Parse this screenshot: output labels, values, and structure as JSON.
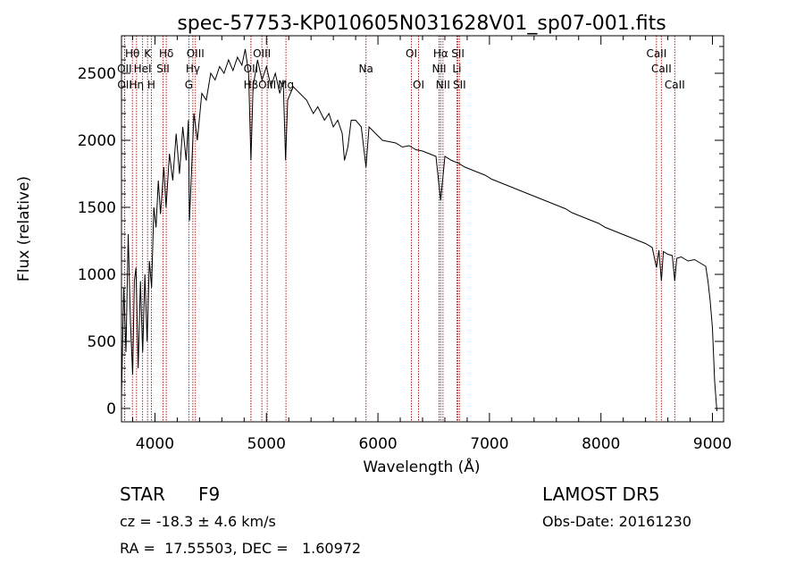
{
  "chart_data": {
    "type": "line",
    "title": "spec-57753-KP010605N031628V01_sp07-001.fits",
    "xlabel": "Wavelength (Å)",
    "ylabel": "Flux (relative)",
    "xlim": [
      3700,
      9100
    ],
    "ylim": [
      -100,
      2780
    ],
    "x_ticks": [
      4000,
      5000,
      6000,
      7000,
      8000,
      9000
    ],
    "y_ticks": [
      0,
      500,
      1000,
      1500,
      2000,
      2500
    ],
    "grid": false,
    "line_color": "#000000",
    "marker_color": "#b22222",
    "series": [
      {
        "values": [
          [
            3700,
            80
          ],
          [
            3720,
            900
          ],
          [
            3740,
            420
          ],
          [
            3760,
            1300
          ],
          [
            3780,
            650
          ],
          [
            3800,
            250
          ],
          [
            3815,
            950
          ],
          [
            3830,
            1050
          ],
          [
            3850,
            300
          ],
          [
            3870,
            950
          ],
          [
            3890,
            420
          ],
          [
            3910,
            1000
          ],
          [
            3930,
            500
          ],
          [
            3950,
            1100
          ],
          [
            3970,
            900
          ],
          [
            3990,
            1500
          ],
          [
            4010,
            1350
          ],
          [
            4030,
            1700
          ],
          [
            4050,
            1450
          ],
          [
            4080,
            1800
          ],
          [
            4100,
            1500
          ],
          [
            4130,
            1900
          ],
          [
            4160,
            1700
          ],
          [
            4190,
            2050
          ],
          [
            4220,
            1750
          ],
          [
            4250,
            2100
          ],
          [
            4280,
            1850
          ],
          [
            4300,
            2150
          ],
          [
            4310,
            1400
          ],
          [
            4330,
            1800
          ],
          [
            4350,
            2200
          ],
          [
            4380,
            2000
          ],
          [
            4420,
            2350
          ],
          [
            4460,
            2300
          ],
          [
            4500,
            2500
          ],
          [
            4540,
            2450
          ],
          [
            4580,
            2550
          ],
          [
            4620,
            2500
          ],
          [
            4660,
            2600
          ],
          [
            4700,
            2520
          ],
          [
            4740,
            2620
          ],
          [
            4780,
            2560
          ],
          [
            4810,
            2680
          ],
          [
            4840,
            2500
          ],
          [
            4861,
            1850
          ],
          [
            4880,
            2400
          ],
          [
            4920,
            2600
          ],
          [
            4960,
            2450
          ],
          [
            5000,
            2550
          ],
          [
            5040,
            2400
          ],
          [
            5080,
            2500
          ],
          [
            5120,
            2350
          ],
          [
            5150,
            2450
          ],
          [
            5172,
            1850
          ],
          [
            5190,
            2300
          ],
          [
            5240,
            2400
          ],
          [
            5300,
            2350
          ],
          [
            5360,
            2300
          ],
          [
            5420,
            2200
          ],
          [
            5460,
            2250
          ],
          [
            5520,
            2150
          ],
          [
            5560,
            2200
          ],
          [
            5600,
            2100
          ],
          [
            5640,
            2150
          ],
          [
            5680,
            2050
          ],
          [
            5700,
            1850
          ],
          [
            5730,
            1950
          ],
          [
            5760,
            2150
          ],
          [
            5800,
            2150
          ],
          [
            5850,
            2100
          ],
          [
            5893,
            1800
          ],
          [
            5920,
            2100
          ],
          [
            5980,
            2050
          ],
          [
            6040,
            2000
          ],
          [
            6100,
            1990
          ],
          [
            6160,
            1980
          ],
          [
            6220,
            1950
          ],
          [
            6280,
            1960
          ],
          [
            6340,
            1930
          ],
          [
            6400,
            1920
          ],
          [
            6460,
            1900
          ],
          [
            6520,
            1880
          ],
          [
            6563,
            1550
          ],
          [
            6600,
            1880
          ],
          [
            6660,
            1850
          ],
          [
            6720,
            1830
          ],
          [
            6780,
            1800
          ],
          [
            6840,
            1780
          ],
          [
            6900,
            1760
          ],
          [
            6960,
            1740
          ],
          [
            7020,
            1710
          ],
          [
            7080,
            1690
          ],
          [
            7140,
            1670
          ],
          [
            7200,
            1650
          ],
          [
            7260,
            1630
          ],
          [
            7320,
            1610
          ],
          [
            7380,
            1590
          ],
          [
            7440,
            1570
          ],
          [
            7500,
            1550
          ],
          [
            7560,
            1530
          ],
          [
            7620,
            1510
          ],
          [
            7680,
            1490
          ],
          [
            7740,
            1460
          ],
          [
            7800,
            1440
          ],
          [
            7860,
            1420
          ],
          [
            7920,
            1400
          ],
          [
            7980,
            1380
          ],
          [
            8040,
            1350
          ],
          [
            8100,
            1330
          ],
          [
            8160,
            1310
          ],
          [
            8220,
            1290
          ],
          [
            8280,
            1270
          ],
          [
            8340,
            1250
          ],
          [
            8400,
            1230
          ],
          [
            8460,
            1200
          ],
          [
            8498,
            1050
          ],
          [
            8520,
            1180
          ],
          [
            8542,
            950
          ],
          [
            8560,
            1170
          ],
          [
            8600,
            1150
          ],
          [
            8640,
            1140
          ],
          [
            8662,
            950
          ],
          [
            8680,
            1120
          ],
          [
            8720,
            1130
          ],
          [
            8780,
            1100
          ],
          [
            8840,
            1110
          ],
          [
            8900,
            1080
          ],
          [
            8940,
            1060
          ],
          [
            8960,
            950
          ],
          [
            8980,
            800
          ],
          [
            9000,
            600
          ],
          [
            9020,
            200
          ],
          [
            9040,
            -20
          ]
        ]
      }
    ],
    "line_markers": [
      {
        "label": "Hθ",
        "wavelength": 3798,
        "row": 0
      },
      {
        "label": "K",
        "wavelength": 3934,
        "row": 0
      },
      {
        "label": "Hδ",
        "wavelength": 4102,
        "row": 0
      },
      {
        "label": "OIII",
        "wavelength": 4363,
        "row": 0
      },
      {
        "label": "OIII",
        "wavelength": 4959,
        "row": 0
      },
      {
        "label": "OI",
        "wavelength": 6300,
        "row": 0
      },
      {
        "label": "Hα",
        "wavelength": 6563,
        "row": 0
      },
      {
        "label": "SII",
        "wavelength": 6717,
        "row": 0
      },
      {
        "label": "CaII",
        "wavelength": 8498,
        "row": 0
      },
      {
        "label": "OII",
        "wavelength": 3727,
        "row": 1
      },
      {
        "label": "HeI",
        "wavelength": 3889,
        "row": 1
      },
      {
        "label": "SII",
        "wavelength": 4072,
        "row": 1
      },
      {
        "label": "Hγ",
        "wavelength": 4340,
        "row": 1
      },
      {
        "label": "OII",
        "wavelength": 4861,
        "row": 1
      },
      {
        "label": "Na",
        "wavelength": 5893,
        "row": 1
      },
      {
        "label": "NII",
        "wavelength": 6548,
        "row": 1
      },
      {
        "label": "Li",
        "wavelength": 6708,
        "row": 1
      },
      {
        "label": "CaII",
        "wavelength": 8542,
        "row": 1
      },
      {
        "label": "OII",
        "wavelength": 3729,
        "row": 2
      },
      {
        "label": "Hη",
        "wavelength": 3835,
        "row": 2
      },
      {
        "label": "H",
        "wavelength": 3968,
        "row": 2
      },
      {
        "label": "G",
        "wavelength": 4304,
        "row": 2
      },
      {
        "label": "Hβ",
        "wavelength": 4861,
        "row": 2
      },
      {
        "label": "OIII",
        "wavelength": 5007,
        "row": 2
      },
      {
        "label": "Mg",
        "wavelength": 5175,
        "row": 2
      },
      {
        "label": "OI",
        "wavelength": 6364,
        "row": 2
      },
      {
        "label": "NII",
        "wavelength": 6583,
        "row": 2
      },
      {
        "label": "SII",
        "wavelength": 6731,
        "row": 2
      },
      {
        "label": "CaII",
        "wavelength": 8662,
        "row": 2
      }
    ]
  },
  "info": {
    "object_class": "STAR",
    "subclass": "F9",
    "survey": "LAMOST DR5",
    "velocity": "cz = -18.3 ± 4.6 km/s",
    "obs_date": "Obs-Date: 20161230",
    "coords": "RA =  17.55503, DEC =   1.60972"
  }
}
